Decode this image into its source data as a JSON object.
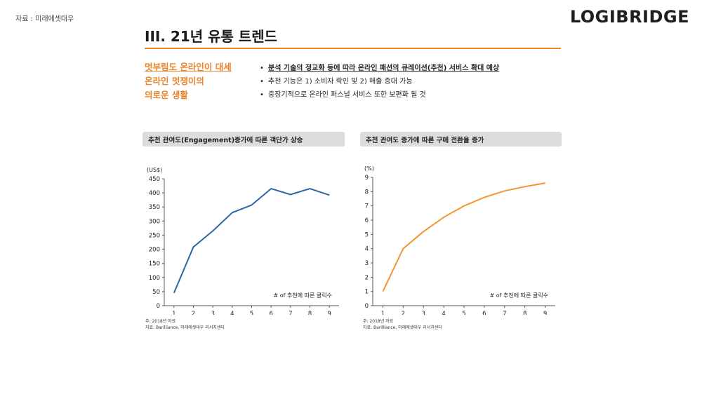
{
  "header": {
    "source": "자료 : 미래에셋대우",
    "brand": "LOGIBRIDGE",
    "title": "III. 21년 유통 트렌드"
  },
  "side_heading": {
    "line1": "멋부림도 온라인이 대세",
    "line2": "온라인 멋쟁이의",
    "line3": "의로운 생활"
  },
  "bullets": [
    "분석 기술의 정교화 등에 따라 온라인 패션의 큐레이션(추천) 서비스 확대 예상",
    "추천 기능은 1) 소비자 락인 및 2) 매출 증대 가능",
    "중장기적으로 온라인 퍼스널 서비스 또한 보편화 될 것"
  ],
  "bullet_symbol": "•",
  "chart_data": [
    {
      "type": "line",
      "title": "추천 관여도(Engagement)증가에 따른 객단가 상승",
      "unit": "(US$)",
      "x": [
        1,
        2,
        3,
        4,
        5,
        6,
        7,
        8,
        9
      ],
      "values": [
        45,
        208,
        265,
        330,
        357,
        415,
        394,
        415,
        392
      ],
      "ylim": [
        0,
        450
      ],
      "yticks": [
        0,
        50,
        100,
        150,
        200,
        250,
        300,
        350,
        400,
        450
      ],
      "annotation": "# of 추천에 따른 클릭수",
      "color": "#2e65a8",
      "note1": "주: 2018년 자료",
      "note2": "자료: Barilliance, 미래에셋대우 리서치센터"
    },
    {
      "type": "line",
      "title": "추천 관여도 증가에 따른 구매 전환율 증가",
      "unit": "(%)",
      "x": [
        1,
        2,
        3,
        4,
        5,
        6,
        7,
        8,
        9
      ],
      "values": [
        1.0,
        4.0,
        5.2,
        6.2,
        7.0,
        7.6,
        8.05,
        8.35,
        8.6
      ],
      "ylim": [
        0,
        9
      ],
      "yticks": [
        0,
        1,
        2,
        3,
        4,
        5,
        6,
        7,
        8,
        9
      ],
      "annotation": "# of 추천에 따른 클릭수",
      "color": "#f39533",
      "note1": "주: 2018년 자료",
      "note2": "자료: Barilliance, 미래에셋대우 리서치센터"
    }
  ]
}
